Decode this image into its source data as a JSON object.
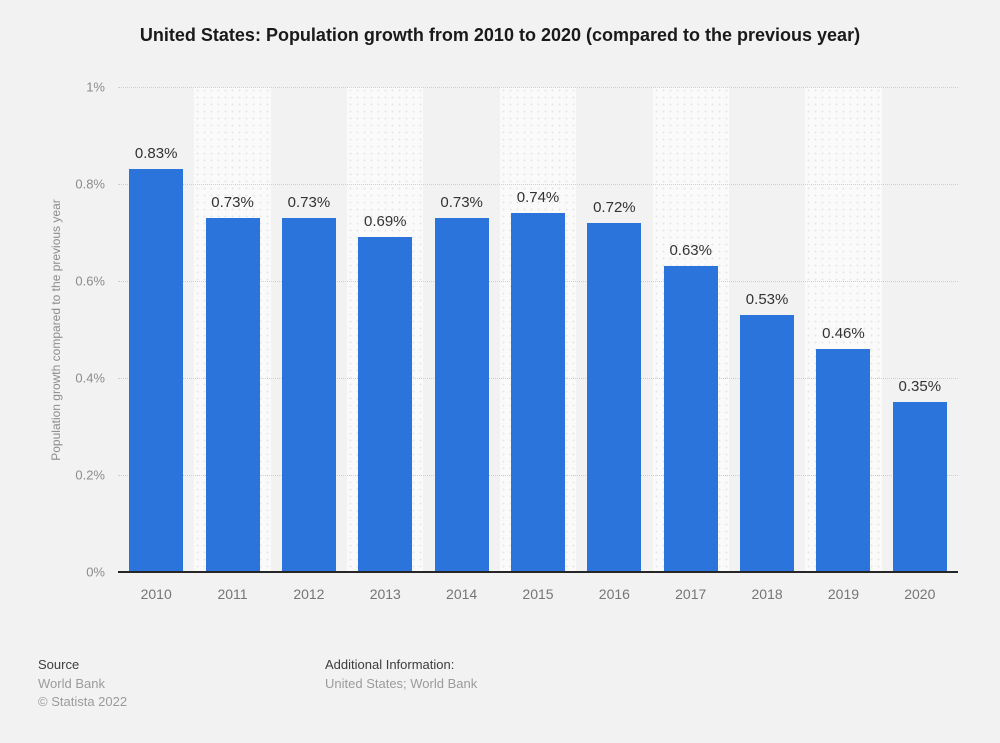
{
  "title": "United States: Population growth from 2010 to 2020 (compared to the previous year)",
  "chart_data": {
    "type": "bar",
    "title": "United States: Population growth from 2010 to 2020 (compared to the previous year)",
    "xlabel": "",
    "ylabel": "Population growth compared to the previous year",
    "ylim": [
      0,
      1
    ],
    "grid": true,
    "legend": "none",
    "categories": [
      "2010",
      "2011",
      "2012",
      "2013",
      "2014",
      "2015",
      "2016",
      "2017",
      "2018",
      "2019",
      "2020"
    ],
    "values": [
      0.83,
      0.73,
      0.73,
      0.69,
      0.73,
      0.74,
      0.72,
      0.63,
      0.53,
      0.46,
      0.35
    ],
    "value_labels": [
      "0.83%",
      "0.73%",
      "0.73%",
      "0.69%",
      "0.73%",
      "0.74%",
      "0.72%",
      "0.63%",
      "0.53%",
      "0.46%",
      "0.35%"
    ],
    "y_ticks": [
      {
        "label": "0%",
        "value": 0
      },
      {
        "label": "0.2%",
        "value": 0.2
      },
      {
        "label": "0.4%",
        "value": 0.4
      },
      {
        "label": "0.6%",
        "value": 0.6
      },
      {
        "label": "0.8%",
        "value": 0.8
      },
      {
        "label": "1%",
        "value": 1
      }
    ],
    "bar_color": "#2b74db"
  },
  "colors": {
    "page_background": "#f2f2f2",
    "shaded_band": "#fafafa",
    "band_dot": "#e7e7e7",
    "gridline": "#cfcfcf",
    "axis_line": "#262626",
    "bar": "#2b74db",
    "value_label": "#333333",
    "tick_label": "#8c8c8c"
  },
  "footer": {
    "source_heading": "Source",
    "source_lines": [
      "World Bank",
      "© Statista 2022"
    ],
    "additional_heading": "Additional Information:",
    "additional_lines": [
      "United States; World Bank"
    ]
  }
}
